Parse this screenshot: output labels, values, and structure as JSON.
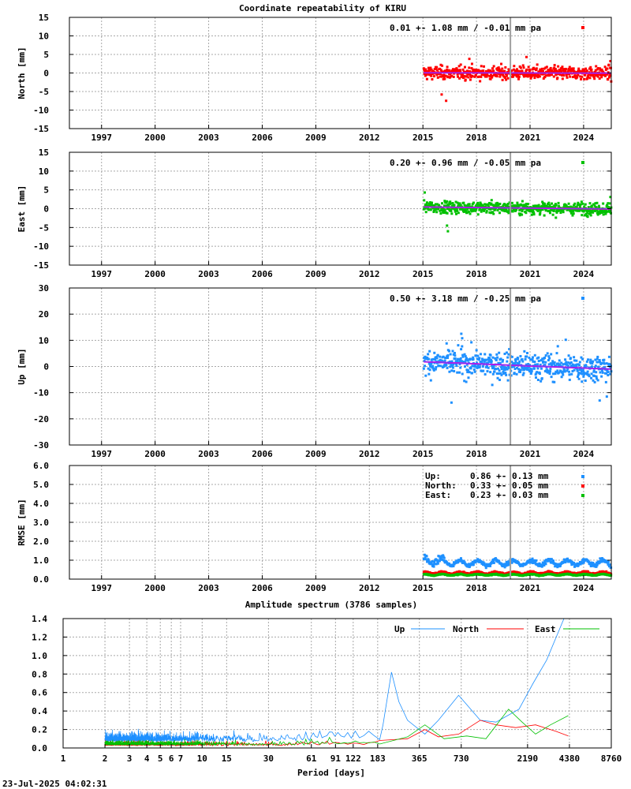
{
  "title": "Coordinate repeatability of KIRU",
  "timestamp": "23-Jul-2025 04:02:31",
  "colors": {
    "north": "#ff0000",
    "east": "#00c000",
    "up": "#1e90ff",
    "trend": "#e000e0",
    "event_line": "#a0a0a0"
  },
  "chart_data": [
    {
      "type": "scatter",
      "id": "north",
      "ylabel": "North [mm]",
      "annotation": "0.01 +- 1.08 mm / -0.01 mm pa",
      "xlim": [
        1995.2,
        2025.55
      ],
      "ylim": [
        -15,
        15
      ],
      "yticks": [
        -15,
        -10,
        -5,
        0,
        5,
        10,
        15
      ],
      "yticklabels": [
        "-15",
        "-10",
        "-5",
        "0",
        "5",
        "10",
        "15"
      ],
      "xticks": [
        1997,
        2000,
        2003,
        2006,
        2009,
        2012,
        2015,
        2018,
        2021,
        2024
      ],
      "xticklabels": [
        "1997",
        "2000",
        "2003",
        "2006",
        "2009",
        "2012",
        "2015",
        "2018",
        "2021",
        "2024"
      ],
      "data_range": [
        2015.05,
        2025.55
      ],
      "mean": 0.01,
      "scatter": 1.08,
      "trend_per_year": -0.01,
      "event_epoch": 2019.9,
      "outliers": [
        [
          2016.3,
          -7.5
        ],
        [
          2016.05,
          -5.8
        ],
        [
          2017.6,
          3.8
        ],
        [
          2020.8,
          4.3
        ],
        [
          2025.5,
          3.2
        ]
      ]
    },
    {
      "type": "scatter",
      "id": "east",
      "ylabel": "East [mm]",
      "annotation": "0.20 +- 0.96 mm / -0.05 mm pa",
      "xlim": [
        1995.2,
        2025.55
      ],
      "ylim": [
        -15,
        15
      ],
      "yticks": [
        -15,
        -10,
        -5,
        0,
        5,
        10,
        15
      ],
      "yticklabels": [
        "-15",
        "-10",
        "-5",
        "0",
        "5",
        "10",
        "15"
      ],
      "xticks": [
        1997,
        2000,
        2003,
        2006,
        2009,
        2012,
        2015,
        2018,
        2021,
        2024
      ],
      "xticklabels": [
        "1997",
        "2000",
        "2003",
        "2006",
        "2009",
        "2012",
        "2015",
        "2018",
        "2021",
        "2024"
      ],
      "data_range": [
        2015.05,
        2025.55
      ],
      "mean": 0.2,
      "scatter": 0.96,
      "trend_per_year": -0.05,
      "event_epoch": 2019.9,
      "outliers": [
        [
          2015.1,
          4.3
        ],
        [
          2016.4,
          -6.0
        ],
        [
          2016.35,
          -4.5
        ],
        [
          2025.5,
          3.1
        ]
      ]
    },
    {
      "type": "scatter",
      "id": "up",
      "ylabel": "Up [mm]",
      "annotation": "0.50 +- 3.18 mm / -0.25 mm pa",
      "xlim": [
        1995.2,
        2025.55
      ],
      "ylim": [
        -30,
        30
      ],
      "yticks": [
        -30,
        -20,
        -10,
        0,
        10,
        20,
        30
      ],
      "yticklabels": [
        "-30",
        "-20",
        "-10",
        "0",
        "10",
        "20",
        "30"
      ],
      "xticks": [
        1997,
        2000,
        2003,
        2006,
        2009,
        2012,
        2015,
        2018,
        2021,
        2024
      ],
      "xticklabels": [
        "1997",
        "2000",
        "2003",
        "2006",
        "2009",
        "2012",
        "2015",
        "2018",
        "2021",
        "2024"
      ],
      "data_range": [
        2015.05,
        2025.55
      ],
      "mean": 0.5,
      "scatter": 3.18,
      "trend_per_year": -0.25,
      "event_epoch": 2019.9,
      "trend_line": [
        [
          2015.05,
          1.8
        ],
        [
          2025.55,
          -1.0
        ]
      ],
      "outliers": [
        [
          2017.15,
          12.5
        ],
        [
          2017.2,
          10.8
        ],
        [
          2016.6,
          -13.8
        ],
        [
          2024.9,
          -13.0
        ],
        [
          2025.3,
          -11.5
        ],
        [
          2023.0,
          10.2
        ]
      ]
    },
    {
      "type": "scatter",
      "id": "rmse",
      "ylabel": "RMSE [mm]",
      "xlim": [
        1995.2,
        2025.55
      ],
      "ylim": [
        0,
        6
      ],
      "yticks": [
        0,
        1,
        2,
        3,
        4,
        5,
        6
      ],
      "yticklabels": [
        "0.0",
        "1.0",
        "2.0",
        "3.0",
        "4.0",
        "5.0",
        "6.0"
      ],
      "xticks": [
        1997,
        2000,
        2003,
        2006,
        2009,
        2012,
        2015,
        2018,
        2021,
        2024
      ],
      "xticklabels": [
        "1997",
        "2000",
        "2003",
        "2006",
        "2009",
        "2012",
        "2015",
        "2018",
        "2021",
        "2024"
      ],
      "data_range": [
        2015.05,
        2025.55
      ],
      "event_epoch": 2019.9,
      "legend": [
        {
          "key": "up",
          "label": "Up:",
          "value": "0.86 +- 0.13 mm",
          "mean": 0.86,
          "amp": 0.13
        },
        {
          "key": "north",
          "label": "North:",
          "value": "0.33 +- 0.05 mm",
          "mean": 0.33,
          "amp": 0.05
        },
        {
          "key": "east",
          "label": "East:",
          "value": "0.23 +- 0.03 mm",
          "mean": 0.23,
          "amp": 0.03
        }
      ]
    },
    {
      "type": "line",
      "id": "spectrum",
      "title": "Amplitude spectrum (3786 samples)",
      "xlabel": "Period [days]",
      "xscale": "log",
      "xlim": [
        1,
        8760
      ],
      "ylim": [
        0,
        1.4
      ],
      "yticks": [
        0,
        0.2,
        0.4,
        0.6,
        0.8,
        1.0,
        1.2,
        1.4
      ],
      "yticklabels": [
        "0.0",
        "0.2",
        "0.4",
        "0.6",
        "0.8",
        "1.0",
        "1.2",
        "1.4"
      ],
      "xticks": [
        1,
        2,
        3,
        4,
        5,
        6,
        7,
        10,
        15,
        30,
        61,
        91,
        122,
        183,
        365,
        730,
        2190,
        4380,
        8760
      ],
      "xticklabels": [
        "1",
        "2",
        "3",
        "4",
        "5",
        "6",
        "7",
        "10",
        "15",
        "30",
        "61",
        "91",
        "122",
        "183",
        "365",
        "730",
        "2190",
        "4380",
        "8760"
      ],
      "series": [
        {
          "name": "Up",
          "key": "up",
          "tail": [
            [
              200,
              0.25
            ],
            [
              230,
              0.82
            ],
            [
              260,
              0.5
            ],
            [
              300,
              0.3
            ],
            [
              400,
              0.15
            ],
            [
              500,
              0.3
            ],
            [
              700,
              0.57
            ],
            [
              1000,
              0.3
            ],
            [
              1300,
              0.28
            ],
            [
              1900,
              0.42
            ],
            [
              2400,
              0.7
            ],
            [
              3000,
              0.95
            ],
            [
              4000,
              1.4
            ],
            [
              4380,
              1.4
            ]
          ]
        },
        {
          "name": "North",
          "key": "north",
          "tail": [
            [
              300,
              0.1
            ],
            [
              400,
              0.2
            ],
            [
              500,
              0.12
            ],
            [
              700,
              0.15
            ],
            [
              1000,
              0.3
            ],
            [
              1300,
              0.25
            ],
            [
              1800,
              0.22
            ],
            [
              2500,
              0.25
            ],
            [
              3500,
              0.18
            ],
            [
              4300,
              0.13
            ]
          ]
        },
        {
          "name": "East",
          "key": "east",
          "tail": [
            [
              300,
              0.12
            ],
            [
              400,
              0.25
            ],
            [
              550,
              0.1
            ],
            [
              800,
              0.13
            ],
            [
              1100,
              0.1
            ],
            [
              1600,
              0.42
            ],
            [
              2000,
              0.28
            ],
            [
              2500,
              0.15
            ],
            [
              3200,
              0.25
            ],
            [
              4300,
              0.35
            ]
          ]
        }
      ]
    }
  ]
}
